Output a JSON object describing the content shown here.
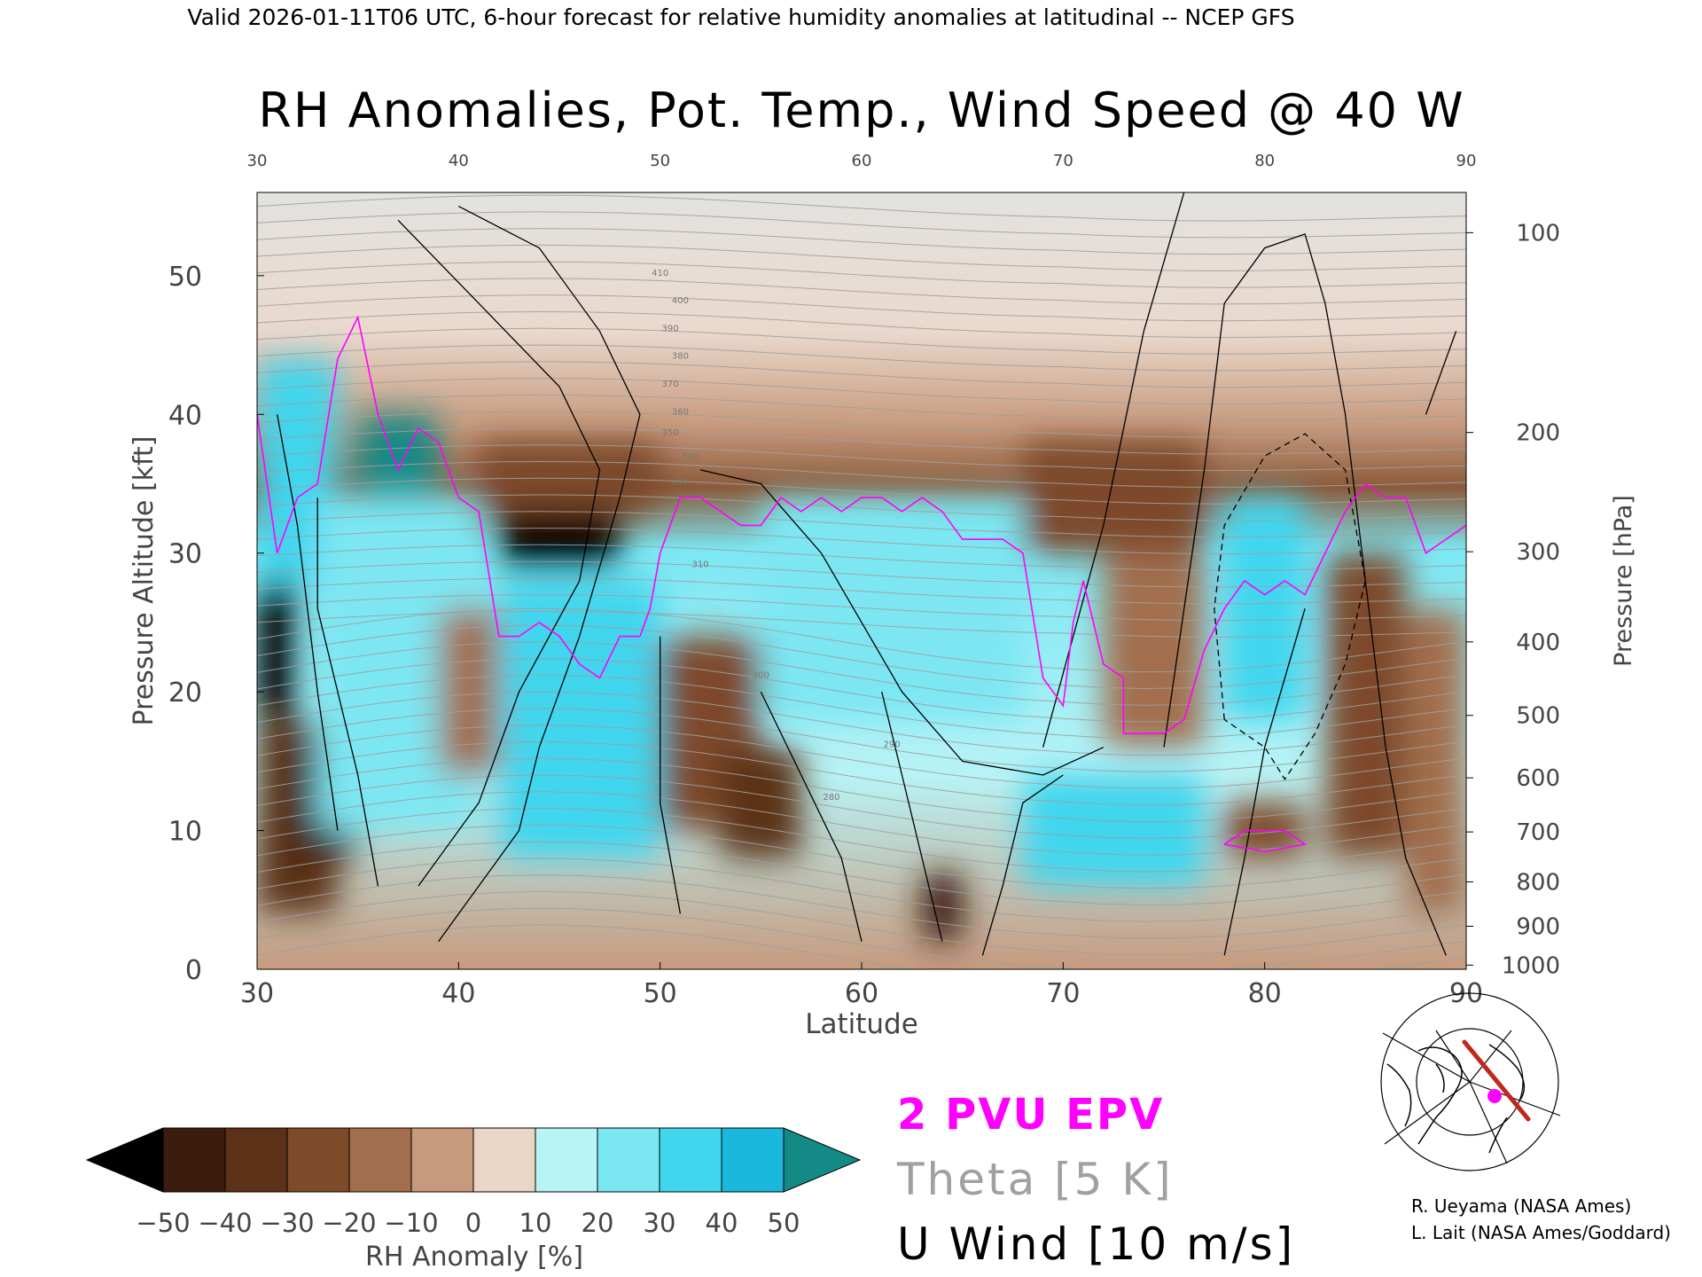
{
  "header": "Valid 2026-01-11T06 UTC, 6-hour forecast for relative humidity anomalies at latitudinal -- NCEP GFS",
  "colors": {
    "epv": "#ff00ff",
    "theta": "#a0a0a0",
    "wind": "#000000",
    "map_track": "#c0281e",
    "map_point": "#ff00ff"
  },
  "chart_data": {
    "type": "heatmap",
    "title": "RH Anomalies, Pot. Temp., Wind Speed @ 40 W",
    "xlabel": "Latitude",
    "ylabel_left": "Pressure Altitude [kft]",
    "ylabel_right": "Pressure [hPa]",
    "xlim": [
      30,
      90
    ],
    "ylim": [
      0,
      56
    ],
    "x_ticks": [
      30,
      40,
      50,
      60,
      70,
      80,
      90
    ],
    "x_top_ticks": [
      30,
      40,
      50,
      60,
      70,
      80,
      90
    ],
    "y_ticks": [
      0,
      10,
      20,
      30,
      40,
      50
    ],
    "pressure_ticks": [
      {
        "hpa": 100,
        "kft": 53.1
      },
      {
        "hpa": 200,
        "kft": 38.7
      },
      {
        "hpa": 300,
        "kft": 30.1
      },
      {
        "hpa": 400,
        "kft": 23.6
      },
      {
        "hpa": 500,
        "kft": 18.3
      },
      {
        "hpa": 600,
        "kft": 13.8
      },
      {
        "hpa": 700,
        "kft": 9.9
      },
      {
        "hpa": 800,
        "kft": 6.3
      },
      {
        "hpa": 900,
        "kft": 3.1
      },
      {
        "hpa": 1000,
        "kft": 0.3
      }
    ],
    "colorbar": {
      "label": "RH Anomaly [%]",
      "levels": [
        -50,
        -40,
        -30,
        -20,
        -10,
        0,
        10,
        20,
        30,
        40,
        50
      ],
      "colors": [
        "#3b1d0e",
        "#5c3118",
        "#7d4a2a",
        "#a26e4e",
        "#c79a7e",
        "#ead6c7",
        "#b8f3f6",
        "#7be7f3",
        "#3fd6ee",
        "#1ab8dc",
        "#1189aa"
      ],
      "under_color": "#000000",
      "over_color": "#138a86"
    },
    "legend": [
      {
        "label": "2 PVU EPV",
        "role": "epv"
      },
      {
        "label": "Theta [5 K]",
        "role": "theta"
      },
      {
        "label": "U Wind [10 m/s]",
        "role": "wind"
      }
    ],
    "theta_labels": [
      {
        "value": 280,
        "x": 58.5,
        "y": 12.2
      },
      {
        "value": 290,
        "x": 61.5,
        "y": 16.0
      },
      {
        "value": 300,
        "x": 55.0,
        "y": 21.0
      },
      {
        "value": 310,
        "x": 52.0,
        "y": 29.0
      },
      {
        "value": 330,
        "x": 51.0,
        "y": 35.0
      },
      {
        "value": 340,
        "x": 51.5,
        "y": 36.8
      },
      {
        "value": 350,
        "x": 50.5,
        "y": 38.5
      },
      {
        "value": 360,
        "x": 51.0,
        "y": 40.0
      },
      {
        "value": 370,
        "x": 50.5,
        "y": 42.0
      },
      {
        "value": 380,
        "x": 51.0,
        "y": 44.0
      },
      {
        "value": 390,
        "x": 50.5,
        "y": 46.0
      },
      {
        "value": 400,
        "x": 51.0,
        "y": 48.0
      },
      {
        "value": 410,
        "x": 50.0,
        "y": 50.0
      }
    ],
    "rh_anomaly_cells": [
      {
        "lat": [
          30,
          32
        ],
        "kft": [
          18,
          28
        ],
        "value": -55
      },
      {
        "lat": [
          30,
          34
        ],
        "kft": [
          4,
          18
        ],
        "value": -40
      },
      {
        "lat": [
          32,
          35
        ],
        "kft": [
          8,
          16
        ],
        "value": -45
      },
      {
        "lat": [
          30,
          34
        ],
        "kft": [
          28,
          44
        ],
        "value": 35
      },
      {
        "lat": [
          35,
          39
        ],
        "kft": [
          34,
          40
        ],
        "value": 52
      },
      {
        "lat": [
          33,
          41
        ],
        "kft": [
          10,
          34
        ],
        "value": 20
      },
      {
        "lat": [
          39,
          42
        ],
        "kft": [
          14,
          26
        ],
        "value": -15
      },
      {
        "lat": [
          42,
          48
        ],
        "kft": [
          29,
          34
        ],
        "value": -55
      },
      {
        "lat": [
          41,
          50
        ],
        "kft": [
          33,
          38
        ],
        "value": -30
      },
      {
        "lat": [
          42,
          50
        ],
        "kft": [
          8,
          28
        ],
        "value": 32
      },
      {
        "lat": [
          50,
          55
        ],
        "kft": [
          10,
          24
        ],
        "value": -25
      },
      {
        "lat": [
          53,
          57
        ],
        "kft": [
          8,
          16
        ],
        "value": -35
      },
      {
        "lat": [
          55,
          68
        ],
        "kft": [
          18,
          34
        ],
        "value": 28
      },
      {
        "lat": [
          63,
          65
        ],
        "kft": [
          2,
          7
        ],
        "value": -45
      },
      {
        "lat": [
          68,
          77
        ],
        "kft": [
          6,
          14
        ],
        "value": 32
      },
      {
        "lat": [
          68,
          77
        ],
        "kft": [
          30,
          38
        ],
        "value": -30
      },
      {
        "lat": [
          72,
          77
        ],
        "kft": [
          16,
          30
        ],
        "value": -15
      },
      {
        "lat": [
          78,
          82
        ],
        "kft": [
          18,
          34
        ],
        "value": 30
      },
      {
        "lat": [
          78,
          82
        ],
        "kft": [
          8,
          12
        ],
        "value": -30
      },
      {
        "lat": [
          83,
          87
        ],
        "kft": [
          8,
          30
        ],
        "value": -25
      },
      {
        "lat": [
          87,
          90
        ],
        "kft": [
          4,
          26
        ],
        "value": -20
      }
    ],
    "grid": false
  },
  "credits": [
    "R. Ueyama (NASA Ames)",
    "L. Lait (NASA Ames/Goddard)"
  ]
}
